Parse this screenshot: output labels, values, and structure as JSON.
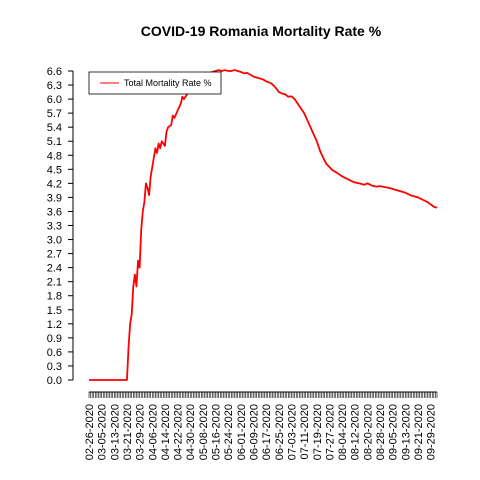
{
  "chart_data": {
    "type": "line",
    "title": "COVID-19 Romania Mortality Rate %",
    "xlabel": "",
    "ylabel": "",
    "ylim": [
      0,
      6.6
    ],
    "yticks": [
      0.0,
      0.3,
      0.6,
      0.9,
      1.2,
      1.5,
      1.8,
      2.1,
      2.4,
      2.7,
      3.0,
      3.3,
      3.6,
      3.9,
      4.2,
      4.5,
      4.8,
      5.1,
      5.4,
      5.7,
      6.0,
      6.3,
      6.6
    ],
    "ytick_labels": [
      "0.0",
      "0.3",
      "0.6",
      "0.9",
      "1.2",
      "1.5",
      "1.8",
      "2.1",
      "2.4",
      "2.7",
      "3.0",
      "3.3",
      "3.6",
      "3.9",
      "4.2",
      "4.5",
      "4.8",
      "5.1",
      "5.4",
      "5.7",
      "6.0",
      "6.3",
      "6.6"
    ],
    "xticks": [
      "02-26-2020",
      "03-05-2020",
      "03-13-2020",
      "03-21-2020",
      "03-29-2020",
      "04-06-2020",
      "04-14-2020",
      "04-22-2020",
      "04-30-2020",
      "05-08-2020",
      "05-16-2020",
      "05-24-2020",
      "06-01-2020",
      "06-09-2020",
      "06-17-2020",
      "06-25-2020",
      "07-03-2020",
      "07-11-2020",
      "07-19-2020",
      "07-27-2020",
      "08-04-2020",
      "08-12-2020",
      "08-20-2020",
      "08-28-2020",
      "09-05-2020",
      "09-13-2020",
      "09-21-2020",
      "09-29-2020"
    ],
    "legend": {
      "position": "top-left"
    },
    "grid": false,
    "series": [
      {
        "name": "Total Mortality Rate %",
        "color": "#ff0000",
        "points": [
          [
            "02-26-2020",
            0.0
          ],
          [
            "03-10-2020",
            0.0
          ],
          [
            "03-21-2020",
            0.0
          ],
          [
            "03-22-2020",
            0.7
          ],
          [
            "03-23-2020",
            1.2
          ],
          [
            "03-24-2020",
            1.4
          ],
          [
            "03-25-2020",
            2.0
          ],
          [
            "03-26-2020",
            2.25
          ],
          [
            "03-27-2020",
            2.0
          ],
          [
            "03-28-2020",
            2.55
          ],
          [
            "03-29-2020",
            2.4
          ],
          [
            "03-30-2020",
            3.2
          ],
          [
            "03-31-2020",
            3.6
          ],
          [
            "04-01-2020",
            3.8
          ],
          [
            "04-02-2020",
            4.2
          ],
          [
            "04-03-2020",
            4.1
          ],
          [
            "04-04-2020",
            3.95
          ],
          [
            "04-05-2020",
            4.35
          ],
          [
            "04-06-2020",
            4.55
          ],
          [
            "04-07-2020",
            4.75
          ],
          [
            "04-08-2020",
            4.95
          ],
          [
            "04-09-2020",
            4.85
          ],
          [
            "04-10-2020",
            5.05
          ],
          [
            "04-11-2020",
            4.95
          ],
          [
            "04-12-2020",
            5.1
          ],
          [
            "04-13-2020",
            5.05
          ],
          [
            "04-14-2020",
            5.0
          ],
          [
            "04-15-2020",
            5.3
          ],
          [
            "04-16-2020",
            5.4
          ],
          [
            "04-18-2020",
            5.45
          ],
          [
            "04-19-2020",
            5.65
          ],
          [
            "04-20-2020",
            5.6
          ],
          [
            "04-22-2020",
            5.75
          ],
          [
            "04-24-2020",
            5.9
          ],
          [
            "04-25-2020",
            6.05
          ],
          [
            "04-26-2020",
            6.0
          ],
          [
            "04-28-2020",
            6.1
          ],
          [
            "04-30-2020",
            6.2
          ],
          [
            "05-02-2020",
            6.25
          ],
          [
            "05-04-2020",
            6.3
          ],
          [
            "05-06-2020",
            6.38
          ],
          [
            "05-08-2020",
            6.45
          ],
          [
            "05-10-2020",
            6.5
          ],
          [
            "05-12-2020",
            6.55
          ],
          [
            "05-14-2020",
            6.58
          ],
          [
            "05-16-2020",
            6.6
          ],
          [
            "05-18-2020",
            6.62
          ],
          [
            "05-20-2020",
            6.6
          ],
          [
            "05-22-2020",
            6.62
          ],
          [
            "05-24-2020",
            6.6
          ],
          [
            "05-26-2020",
            6.6
          ],
          [
            "05-28-2020",
            6.62
          ],
          [
            "05-30-2020",
            6.6
          ],
          [
            "06-01-2020",
            6.58
          ],
          [
            "06-03-2020",
            6.55
          ],
          [
            "06-05-2020",
            6.56
          ],
          [
            "06-07-2020",
            6.52
          ],
          [
            "06-09-2020",
            6.48
          ],
          [
            "06-12-2020",
            6.45
          ],
          [
            "06-15-2020",
            6.42
          ],
          [
            "06-17-2020",
            6.38
          ],
          [
            "06-20-2020",
            6.34
          ],
          [
            "06-22-2020",
            6.28
          ],
          [
            "06-24-2020",
            6.2
          ],
          [
            "06-25-2020",
            6.15
          ],
          [
            "06-27-2020",
            6.12
          ],
          [
            "06-29-2020",
            6.1
          ],
          [
            "07-01-2020",
            6.05
          ],
          [
            "07-03-2020",
            6.06
          ],
          [
            "07-05-2020",
            6.0
          ],
          [
            "07-07-2020",
            5.9
          ],
          [
            "07-09-2020",
            5.8
          ],
          [
            "07-11-2020",
            5.7
          ],
          [
            "07-13-2020",
            5.55
          ],
          [
            "07-15-2020",
            5.4
          ],
          [
            "07-17-2020",
            5.25
          ],
          [
            "07-19-2020",
            5.1
          ],
          [
            "07-21-2020",
            4.9
          ],
          [
            "07-23-2020",
            4.75
          ],
          [
            "07-25-2020",
            4.62
          ],
          [
            "07-27-2020",
            4.55
          ],
          [
            "07-29-2020",
            4.48
          ],
          [
            "08-01-2020",
            4.42
          ],
          [
            "08-04-2020",
            4.35
          ],
          [
            "08-07-2020",
            4.3
          ],
          [
            "08-10-2020",
            4.25
          ],
          [
            "08-12-2020",
            4.22
          ],
          [
            "08-15-2020",
            4.2
          ],
          [
            "08-18-2020",
            4.17
          ],
          [
            "08-20-2020",
            4.2
          ],
          [
            "08-23-2020",
            4.15
          ],
          [
            "08-26-2020",
            4.13
          ],
          [
            "08-28-2020",
            4.14
          ],
          [
            "08-31-2020",
            4.12
          ],
          [
            "09-03-2020",
            4.1
          ],
          [
            "09-05-2020",
            4.08
          ],
          [
            "09-08-2020",
            4.05
          ],
          [
            "09-11-2020",
            4.02
          ],
          [
            "09-13-2020",
            4.0
          ],
          [
            "09-16-2020",
            3.95
          ],
          [
            "09-19-2020",
            3.92
          ],
          [
            "09-21-2020",
            3.9
          ],
          [
            "09-24-2020",
            3.85
          ],
          [
            "09-27-2020",
            3.8
          ],
          [
            "09-29-2020",
            3.75
          ],
          [
            "10-01-2020",
            3.7
          ],
          [
            "10-03-2020",
            3.68
          ]
        ]
      }
    ]
  }
}
